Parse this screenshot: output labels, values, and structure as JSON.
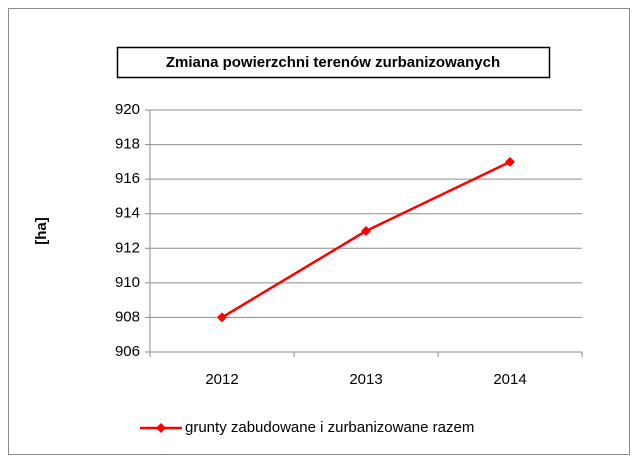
{
  "chart_data": {
    "type": "line",
    "title": "Zmiana powierzchni terenów zurbanizowanych",
    "y_label": "[ha]",
    "categories": [
      "2012",
      "2013",
      "2014"
    ],
    "series": [
      {
        "name": "grunty zabudowane  i zurbanizowane razem",
        "color": "#ff0000",
        "values": [
          908,
          913,
          917
        ]
      }
    ],
    "ylim": [
      906,
      920
    ],
    "yticks": [
      906,
      908,
      910,
      912,
      914,
      916,
      918,
      920
    ],
    "grid": true,
    "legend": "bottom"
  }
}
